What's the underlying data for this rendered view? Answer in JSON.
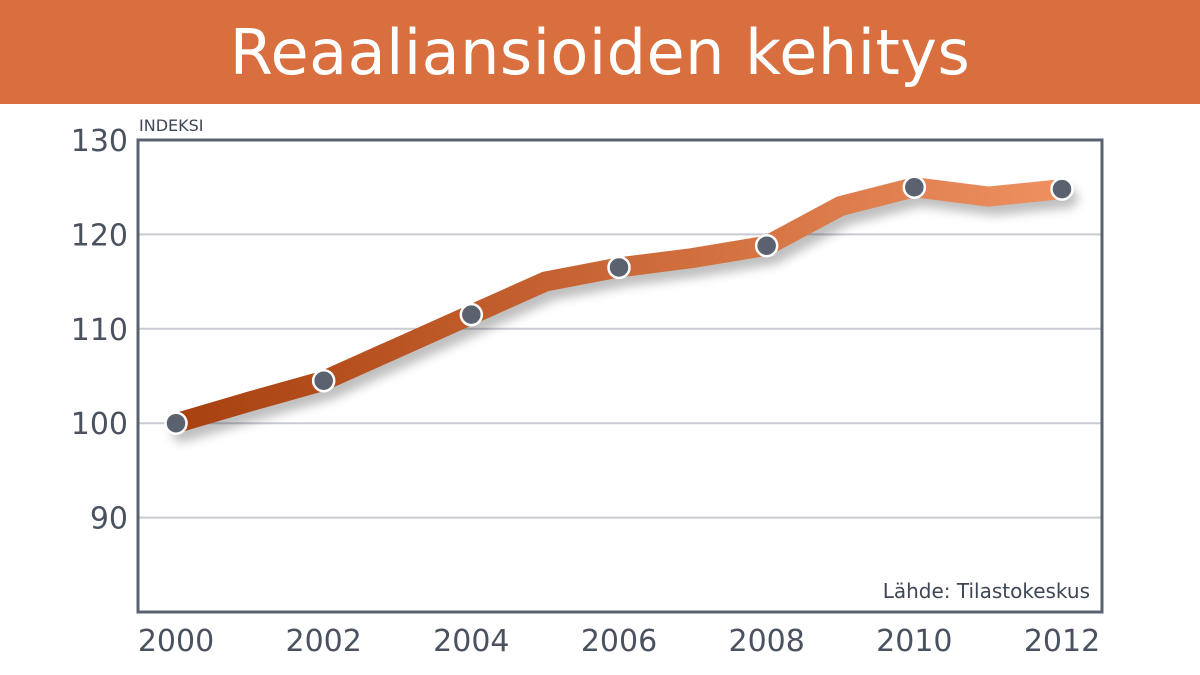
{
  "chart_data": {
    "type": "line",
    "title": "Reaaliansioiden kehitys",
    "ylabel": "INDEKSI",
    "xlabel": "",
    "source": "Lähde: Tilastokeskus",
    "x": [
      2000,
      2001,
      2002,
      2003,
      2004,
      2005,
      2006,
      2007,
      2008,
      2009,
      2010,
      2011,
      2012
    ],
    "series": [
      {
        "values": [
          100,
          102.3,
          104.5,
          108,
          111.5,
          115,
          116.5,
          117.5,
          118.8,
          123,
          125,
          124,
          124.8
        ]
      }
    ],
    "markers_at": [
      2000,
      2002,
      2004,
      2006,
      2008,
      2010,
      2012
    ],
    "xticks": [
      "2000",
      "2002",
      "2004",
      "2006",
      "2008",
      "2010",
      "2012"
    ],
    "yticks": [
      "90",
      "100",
      "110",
      "120",
      "130"
    ],
    "ylim": [
      80,
      130
    ],
    "xlim": [
      2000,
      2012
    ],
    "grid": true,
    "colors": {
      "title_bg": "#d96f3f",
      "line_start": "#a8400f",
      "line_end": "#ee9060",
      "marker": "#5a6270",
      "grid": "#c8cbd3",
      "axis": "#5a6270"
    }
  }
}
